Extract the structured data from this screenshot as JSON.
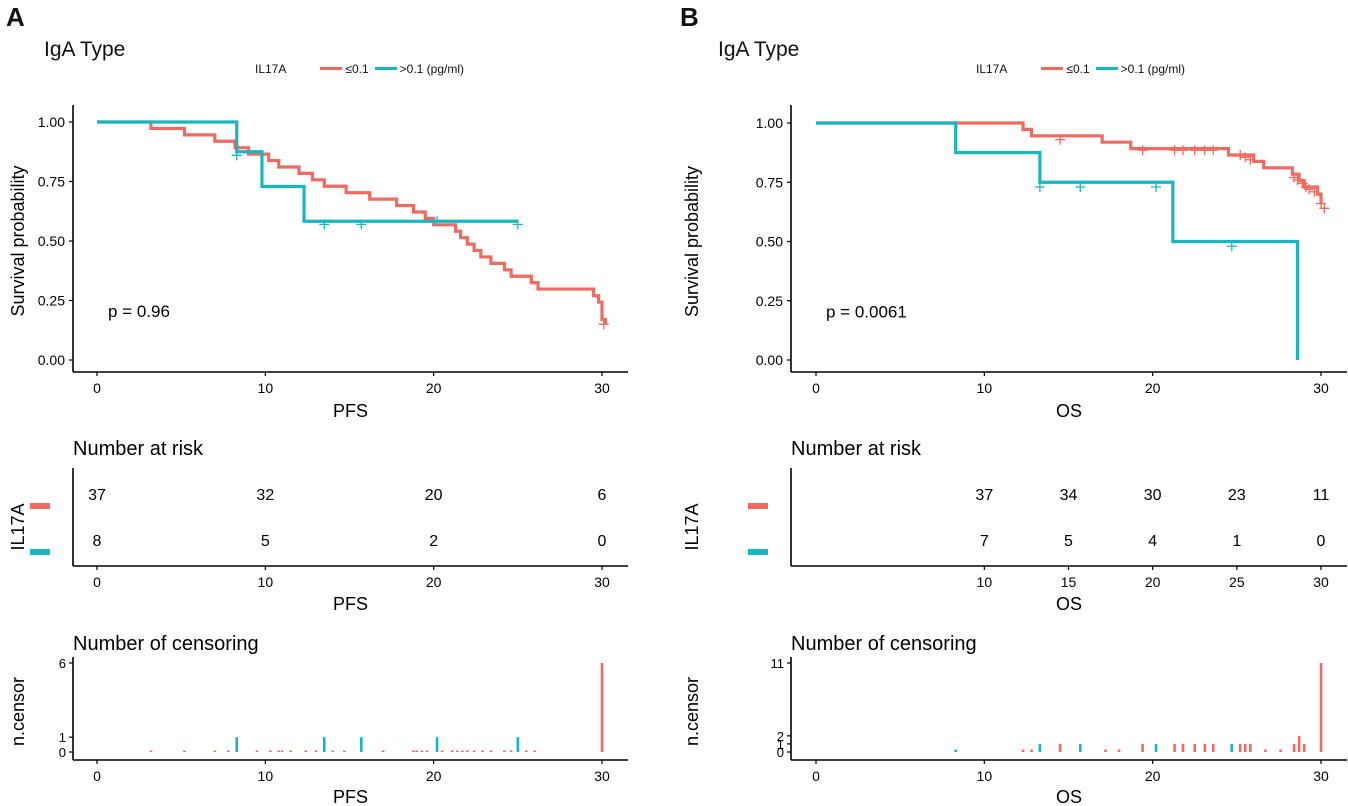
{
  "colors": {
    "low": "#F06A62",
    "high": "#17B7C0",
    "axis": "#000000"
  },
  "panels": [
    {
      "label": "A",
      "title": "IgA Type",
      "legend": {
        "title": "IL17A",
        "items": [
          "≤0.1",
          ">0.1 (pg/ml)"
        ]
      },
      "chart_data": [
        {
          "type": "line",
          "title": "IgA Type",
          "xlabel": "PFS",
          "ylabel": "Survival probability",
          "xlim": [
            0,
            30
          ],
          "ylim": [
            0,
            1
          ],
          "xticks": [
            "0",
            "10",
            "20",
            "30"
          ],
          "yticks": [
            "0.00",
            "0.25",
            "0.50",
            "0.75",
            "1.00"
          ],
          "pvalue": "p = 0.96",
          "series": [
            {
              "name": "≤0.1",
              "steps": [
                [
                  0,
                  1
                ],
                [
                  3.2,
                  0.973
                ],
                [
                  5.2,
                  0.946
                ],
                [
                  7.0,
                  0.919
                ],
                [
                  8.2,
                  0.892
                ],
                [
                  9.0,
                  0.865
                ],
                [
                  10.2,
                  0.838
                ],
                [
                  10.8,
                  0.811
                ],
                [
                  12.0,
                  0.784
                ],
                [
                  12.8,
                  0.757
                ],
                [
                  13.5,
                  0.73
                ],
                [
                  14.8,
                  0.703
                ],
                [
                  16.2,
                  0.676
                ],
                [
                  17.8,
                  0.649
                ],
                [
                  18.8,
                  0.622
                ],
                [
                  19.5,
                  0.595
                ],
                [
                  20.0,
                  0.568
                ],
                [
                  21.3,
                  0.541
                ],
                [
                  21.6,
                  0.514
                ],
                [
                  22.0,
                  0.487
                ],
                [
                  22.4,
                  0.46
                ],
                [
                  22.8,
                  0.433
                ],
                [
                  23.4,
                  0.406
                ],
                [
                  24.2,
                  0.379
                ],
                [
                  24.6,
                  0.352
                ],
                [
                  25.8,
                  0.325
                ],
                [
                  26.2,
                  0.298
                ],
                [
                  29.5,
                  0.27
                ],
                [
                  29.8,
                  0.243
                ],
                [
                  30.0,
                  0.17
                ],
                [
                  30.2,
                  0.15
                ]
              ],
              "censors": [
                [
                  30.1,
                  0.15
                ]
              ]
            },
            {
              "name": ">0.1 (pg/ml)",
              "steps": [
                [
                  0,
                  1
                ],
                [
                  8.3,
                  0.875
                ],
                [
                  9.8,
                  0.729
                ],
                [
                  12.3,
                  0.583
                ],
                [
                  25.0,
                  0.583
                ]
              ],
              "censors": [
                [
                  8.3,
                  0.86
                ],
                [
                  13.5,
                  0.57
                ],
                [
                  15.7,
                  0.57
                ],
                [
                  20.2,
                  0.583
                ],
                [
                  25.0,
                  0.57
                ]
              ]
            }
          ]
        },
        {
          "type": "table",
          "title": "Number at risk",
          "xlabel": "PFS",
          "ylabel": "IL17A",
          "x": [
            0,
            10,
            20,
            30
          ],
          "xticks": [
            "0",
            "10",
            "20",
            "30"
          ],
          "rows": [
            {
              "name": "≤0.1",
              "values": [
                "37",
                "32",
                "20",
                "6"
              ]
            },
            {
              "name": ">0.1 (pg/ml)",
              "values": [
                "8",
                "5",
                "2",
                "0"
              ]
            }
          ]
        },
        {
          "type": "bar",
          "title": "Number of censoring",
          "xlabel": "PFS",
          "ylabel": "n.censor",
          "ylim": [
            0,
            6
          ],
          "yticks": [
            "0",
            "1",
            "6"
          ],
          "xticks": [
            "0",
            "10",
            "20",
            "30"
          ],
          "series": [
            {
              "name": "≤0.1",
              "x": [
                3.2,
                5.2,
                7.0,
                7.8,
                9.5,
                10.3,
                10.8,
                11.0,
                11.5,
                12.4,
                13.0,
                14.0,
                14.7,
                17.0,
                18.8,
                19.0,
                19.3,
                19.6,
                20.5,
                21.1,
                21.4,
                21.7,
                22.0,
                22.4,
                22.9,
                23.4,
                24.2,
                24.6,
                25.0,
                25.5,
                26.0,
                30.0
              ],
              "values": [
                0.1,
                0.1,
                0.1,
                0.1,
                0.1,
                0.1,
                0.1,
                0.1,
                0.1,
                0.1,
                0.1,
                0.1,
                0.1,
                0.1,
                0.1,
                0.1,
                0.1,
                0.1,
                0.1,
                0.1,
                0.1,
                0.1,
                0.1,
                0.1,
                0.1,
                0.1,
                0.1,
                0.1,
                0.1,
                0.1,
                0.1,
                6
              ]
            },
            {
              "name": ">0.1 (pg/ml)",
              "x": [
                8.3,
                13.5,
                15.7,
                20.2,
                25.0
              ],
              "values": [
                1,
                1,
                1,
                1,
                1
              ]
            }
          ]
        }
      ]
    },
    {
      "label": "B",
      "title": "IgA Type",
      "legend": {
        "title": "IL17A",
        "items": [
          "≤0.1",
          ">0.1 (pg/ml)"
        ]
      },
      "chart_data": [
        {
          "type": "line",
          "title": "IgA Type",
          "xlabel": "OS",
          "ylabel": "Survival probability",
          "xlim": [
            0,
            30
          ],
          "ylim": [
            0,
            1
          ],
          "xticks": [
            "0",
            "10",
            "20",
            "30"
          ],
          "yticks": [
            "0.00",
            "0.25",
            "0.50",
            "0.75",
            "1.00"
          ],
          "pvalue": "p = 0.0061",
          "series": [
            {
              "name": "≤0.1",
              "steps": [
                [
                  0,
                  1
                ],
                [
                  12.3,
                  0.973
                ],
                [
                  12.8,
                  0.946
                ],
                [
                  17.0,
                  0.919
                ],
                [
                  18.7,
                  0.892
                ],
                [
                  24.5,
                  0.865
                ],
                [
                  26.0,
                  0.838
                ],
                [
                  26.6,
                  0.811
                ],
                [
                  28.3,
                  0.784
                ],
                [
                  28.7,
                  0.757
                ],
                [
                  29.0,
                  0.73
                ],
                [
                  29.8,
                  0.7
                ],
                [
                  30.0,
                  0.66
                ]
              ],
              "censors": [
                [
                  14.5,
                  0.93
                ],
                [
                  19.4,
                  0.885
                ],
                [
                  21.3,
                  0.885
                ],
                [
                  21.8,
                  0.885
                ],
                [
                  22.5,
                  0.885
                ],
                [
                  23.1,
                  0.885
                ],
                [
                  23.6,
                  0.885
                ],
                [
                  25.2,
                  0.865
                ],
                [
                  25.5,
                  0.855
                ],
                [
                  25.8,
                  0.845
                ],
                [
                  28.4,
                  0.77
                ],
                [
                  28.6,
                  0.76
                ],
                [
                  28.9,
                  0.745
                ],
                [
                  29.1,
                  0.73
                ],
                [
                  29.3,
                  0.72
                ],
                [
                  29.6,
                  0.71
                ],
                [
                  30.0,
                  0.66
                ],
                [
                  30.2,
                  0.64
                ]
              ]
            },
            {
              "name": ">0.1 (pg/ml)",
              "steps": [
                [
                  0,
                  1
                ],
                [
                  8.3,
                  0.875
                ],
                [
                  13.3,
                  0.75
                ],
                [
                  21.2,
                  0.5
                ],
                [
                  28.6,
                  0.0
                ]
              ],
              "censors": [
                [
                  13.3,
                  0.73
                ],
                [
                  15.7,
                  0.73
                ],
                [
                  20.2,
                  0.73
                ],
                [
                  24.7,
                  0.48
                ]
              ]
            }
          ]
        },
        {
          "type": "table",
          "title": "Number at risk",
          "xlabel": "OS",
          "ylabel": "IL17A",
          "x": [
            10,
            15,
            20,
            25,
            30
          ],
          "xticks": [
            "10",
            "15",
            "20",
            "25",
            "30"
          ],
          "rows": [
            {
              "name": "≤0.1",
              "values": [
                "37",
                "34",
                "30",
                "23",
                "11"
              ]
            },
            {
              "name": ">0.1 (pg/ml)",
              "values": [
                "7",
                "5",
                "4",
                "1",
                "0"
              ]
            }
          ]
        },
        {
          "type": "bar",
          "title": "Number of censoring",
          "xlabel": "OS",
          "ylabel": "n.censor",
          "ylim": [
            0,
            11
          ],
          "yticks": [
            "0",
            "1",
            "2",
            "11"
          ],
          "xticks": [
            "0",
            "10",
            "20",
            "30"
          ],
          "series": [
            {
              "name": "≤0.1",
              "x": [
                12.3,
                12.8,
                14.5,
                17.2,
                18.0,
                19.4,
                21.3,
                21.8,
                22.5,
                23.1,
                23.6,
                25.2,
                25.5,
                25.8,
                26.7,
                27.6,
                28.4,
                28.7,
                29.0,
                30.0
              ],
              "values": [
                0.3,
                0.3,
                1,
                0.3,
                0.3,
                1,
                1,
                1,
                1,
                1,
                1,
                1,
                1,
                1,
                0.3,
                0.3,
                1,
                2,
                1,
                11
              ]
            },
            {
              "name": ">0.1 (pg/ml)",
              "x": [
                8.3,
                13.3,
                15.7,
                20.2,
                24.7
              ],
              "values": [
                0.3,
                1,
                1,
                1,
                1
              ]
            }
          ]
        }
      ]
    }
  ]
}
